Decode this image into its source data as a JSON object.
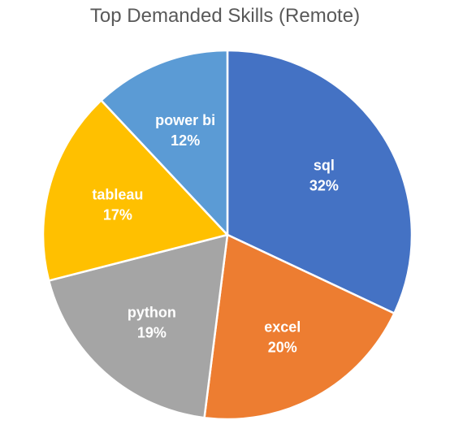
{
  "chart_data": {
    "type": "pie",
    "title": "Top Demanded Skills (Remote)",
    "slices": [
      {
        "label": "sql",
        "value": 32,
        "percent_label": "32%",
        "color": "#4472C4"
      },
      {
        "label": "excel",
        "value": 20,
        "percent_label": "20%",
        "color": "#ED7D31"
      },
      {
        "label": "python",
        "value": 19,
        "percent_label": "19%",
        "color": "#A5A5A5"
      },
      {
        "label": "tableau",
        "value": 17,
        "percent_label": "17%",
        "color": "#FFC000"
      },
      {
        "label": "power bi",
        "value": 12,
        "percent_label": "12%",
        "color": "#5B9BD5"
      }
    ],
    "start_angle": "12 o'clock",
    "direction": "clockwise",
    "slice_border_color": "#FFFFFF",
    "legend": "none"
  }
}
